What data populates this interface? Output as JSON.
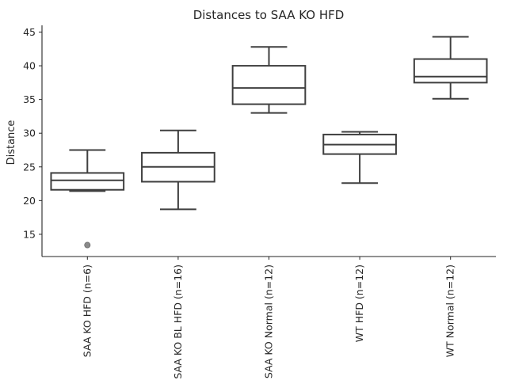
{
  "chart_data": {
    "type": "box",
    "title": "Distances to SAA KO HFD",
    "xlabel": "",
    "ylabel": "Distance",
    "ylim": [
      11.7,
      46
    ],
    "yticks": [
      15,
      20,
      25,
      30,
      35,
      40,
      45
    ],
    "grid": false,
    "legend": "none",
    "colors": {
      "box_line": "#3f3f3f",
      "box_fill": "#ffffff",
      "outlier_fill": "#8a8a8a"
    },
    "categories": [
      "SAA KO HFD (n=6)",
      "SAA KO BL HFD (n=16)",
      "SAA KO Normal (n=12)",
      "WT HFD (n=12)",
      "WT Normal (n=12)"
    ],
    "boxes": [
      {
        "whislo": 21.4,
        "q1": 21.6,
        "med": 23.0,
        "q3": 24.1,
        "whishi": 27.5,
        "fliers": [
          13.4
        ]
      },
      {
        "whislo": 18.7,
        "q1": 22.8,
        "med": 25.0,
        "q3": 27.1,
        "whishi": 30.4,
        "fliers": []
      },
      {
        "whislo": 33.0,
        "q1": 34.3,
        "med": 36.7,
        "q3": 40.0,
        "whishi": 42.8,
        "fliers": []
      },
      {
        "whislo": 22.6,
        "q1": 26.9,
        "med": 28.3,
        "q3": 29.8,
        "whishi": 30.2,
        "fliers": []
      },
      {
        "whislo": 35.1,
        "q1": 37.5,
        "med": 38.4,
        "q3": 41.0,
        "whishi": 44.3,
        "fliers": []
      }
    ]
  }
}
